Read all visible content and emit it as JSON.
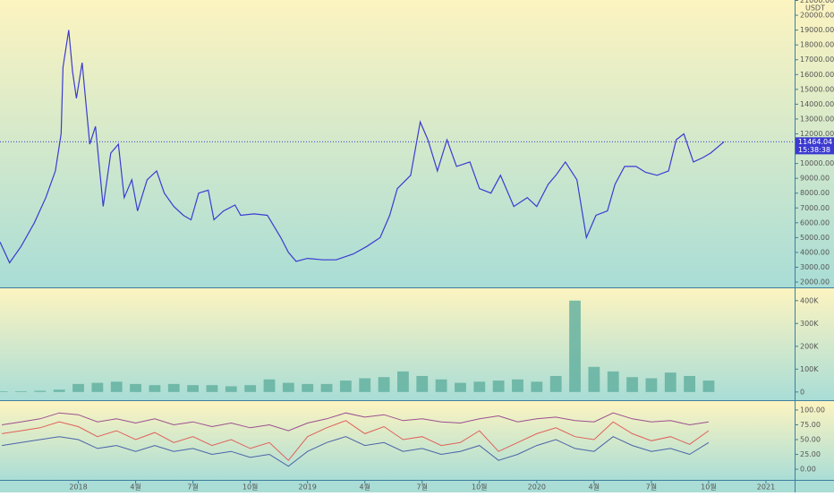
{
  "chart_data": [
    {
      "type": "line",
      "unit": "USDT",
      "last_value_label": "11464.04",
      "countdown": "15:38:38",
      "xlim": [
        -4.1,
        37.5
      ],
      "ylim": [
        1640,
        21030
      ],
      "yticks": [
        {
          "value": 2000,
          "label": "2000.00"
        },
        {
          "value": 3000,
          "label": "3000.00"
        },
        {
          "value": 4000,
          "label": "4000.00"
        },
        {
          "value": 5000,
          "label": "5000.00"
        },
        {
          "value": 6000,
          "label": "6000.00"
        },
        {
          "value": 7000,
          "label": "7000.00"
        },
        {
          "value": 8000,
          "label": "8000.00"
        },
        {
          "value": 9000,
          "label": "9000.00"
        },
        {
          "value": 10000,
          "label": "10000.00"
        },
        {
          "value": 11000,
          "label": "11000.00"
        },
        {
          "value": 12000,
          "label": "12000.00"
        },
        {
          "value": 13000,
          "label": "13000.00"
        },
        {
          "value": 14000,
          "label": "14000.00"
        },
        {
          "value": 15000,
          "label": "15000.00"
        },
        {
          "value": 16000,
          "label": "16000.00"
        },
        {
          "value": 17000,
          "label": "17000.00"
        },
        {
          "value": 18000,
          "label": "18000.00"
        },
        {
          "value": 19000,
          "label": "19000.00"
        },
        {
          "value": 20000,
          "label": "20000.00"
        },
        {
          "value": 21000,
          "label": "21000.00"
        }
      ],
      "x": [
        -4.1,
        -3.6,
        -3.0,
        -2.3,
        -1.7,
        -1.2,
        -0.9,
        -0.8,
        -0.5,
        -0.3,
        -0.1,
        0.2,
        0.6,
        0.9,
        1.3,
        1.7,
        2.1,
        2.4,
        2.8,
        3.1,
        3.6,
        4.1,
        4.5,
        5.0,
        5.5,
        5.9,
        6.3,
        6.8,
        7.1,
        7.6,
        8.2,
        8.5,
        9.2,
        9.9,
        10.6,
        11.0,
        11.4,
        12.0,
        12.8,
        13.5,
        14.4,
        15.1,
        15.8,
        16.3,
        16.7,
        17.4,
        17.9,
        18.3,
        18.8,
        19.3,
        19.8,
        20.5,
        21.0,
        21.6,
        22.1,
        22.8,
        23.5,
        24.0,
        24.6,
        25.0,
        25.5,
        26.1,
        26.6,
        27.1,
        27.7,
        28.1,
        28.6,
        29.2,
        29.7,
        30.3,
        30.9,
        31.3,
        31.7,
        32.2,
        32.7,
        33.1,
        33.8
      ],
      "series": [
        {
          "color": "#3b3bd1",
          "values": [
            4700,
            3300,
            4400,
            6000,
            7700,
            9500,
            12000,
            16500,
            19000,
            16200,
            14400,
            16800,
            11300,
            12500,
            7100,
            10700,
            11300,
            7700,
            8900,
            6800,
            8900,
            9500,
            8000,
            7100,
            6500,
            6200,
            8000,
            8200,
            6200,
            6800,
            7200,
            6500,
            6600,
            6500,
            5000,
            4000,
            3400,
            3600,
            3500,
            3500,
            3900,
            4400,
            5000,
            6500,
            8300,
            9200,
            12800,
            11600,
            9500,
            11600,
            9800,
            10100,
            8300,
            8000,
            9200,
            7100,
            7700,
            7100,
            8600,
            9200,
            10100,
            8900,
            5000,
            6500,
            6800,
            8600,
            9800,
            9800,
            9400,
            9200,
            9500,
            11600,
            12000,
            10100,
            10400,
            10700,
            11464.04
          ]
        }
      ]
    },
    {
      "type": "bar",
      "xlim": [
        -4.1,
        37.5
      ],
      "ylim": [
        -36000,
        454000
      ],
      "yticks": [
        0,
        {
          "value": 100000,
          "label": "100K"
        },
        {
          "value": 200000,
          "label": "200K"
        },
        {
          "value": 300000,
          "label": "300K"
        },
        {
          "value": 400000,
          "label": "400K"
        }
      ],
      "x": [
        -4,
        -3,
        -2,
        -1,
        0,
        1,
        2,
        3,
        4,
        5,
        6,
        7,
        8,
        9,
        10,
        11,
        12,
        13,
        14,
        15,
        16,
        17,
        18,
        19,
        20,
        21,
        22,
        23,
        24,
        25,
        26,
        27,
        28,
        29,
        30,
        31,
        32,
        33
      ],
      "series": [
        {
          "color": "#5fae9e",
          "values": [
            3000,
            3000,
            5000,
            10000,
            35000,
            40000,
            45000,
            35000,
            30000,
            35000,
            30000,
            30000,
            25000,
            30000,
            55000,
            40000,
            35000,
            35000,
            50000,
            60000,
            65000,
            90000,
            70000,
            55000,
            40000,
            45000,
            50000,
            55000,
            45000,
            70000,
            400000,
            110000,
            90000,
            65000,
            60000,
            85000,
            70000,
            50000
          ]
        }
      ]
    },
    {
      "type": "line",
      "xlim": [
        -4.1,
        37.5
      ],
      "ylim": [
        -18,
        115
      ],
      "yticks": [
        {
          "value": 0,
          "label": "0.00"
        },
        {
          "value": 25,
          "label": "25.00"
        },
        {
          "value": 50,
          "label": "50.00"
        },
        {
          "value": 75,
          "label": "75.00"
        },
        {
          "value": 100,
          "label": "100.00"
        }
      ],
      "xticks": [
        {
          "value": 0,
          "label": "2018"
        },
        {
          "value": 3,
          "label": "4월"
        },
        {
          "value": 6,
          "label": "7월"
        },
        {
          "value": 9,
          "label": "10월"
        },
        {
          "value": 12,
          "label": "2019"
        },
        {
          "value": 15,
          "label": "4월"
        },
        {
          "value": 18,
          "label": "7월"
        },
        {
          "value": 21,
          "label": "10월"
        },
        {
          "value": 24,
          "label": "2020"
        },
        {
          "value": 27,
          "label": "4월"
        },
        {
          "value": 30,
          "label": "7월"
        },
        {
          "value": 33,
          "label": "10월"
        },
        {
          "value": 36,
          "label": "2021"
        }
      ],
      "x": [
        -4,
        -3,
        -2,
        -1,
        0,
        1,
        2,
        3,
        4,
        5,
        6,
        7,
        8,
        9,
        10,
        11,
        12,
        13,
        14,
        15,
        16,
        17,
        18,
        19,
        20,
        21,
        22,
        23,
        24,
        25,
        26,
        27,
        28,
        29,
        30,
        31,
        32,
        33
      ],
      "series": [
        {
          "color": "#9c4f8f",
          "values": [
            75,
            80,
            85,
            95,
            92,
            80,
            85,
            78,
            85,
            75,
            80,
            72,
            78,
            70,
            75,
            65,
            78,
            85,
            95,
            88,
            92,
            82,
            85,
            80,
            78,
            85,
            90,
            80,
            85,
            88,
            82,
            80,
            95,
            85,
            80,
            82,
            75,
            80
          ]
        },
        {
          "color": "#e0605a",
          "values": [
            60,
            65,
            70,
            80,
            72,
            55,
            65,
            50,
            62,
            45,
            55,
            40,
            50,
            35,
            45,
            15,
            55,
            70,
            82,
            60,
            72,
            50,
            55,
            40,
            45,
            65,
            30,
            45,
            60,
            70,
            55,
            50,
            80,
            60,
            48,
            55,
            42,
            65
          ]
        },
        {
          "color": "#4a63a8",
          "values": [
            40,
            45,
            50,
            55,
            50,
            35,
            40,
            30,
            40,
            30,
            35,
            25,
            30,
            20,
            25,
            5,
            30,
            45,
            55,
            40,
            45,
            30,
            35,
            25,
            30,
            40,
            15,
            25,
            40,
            50,
            35,
            30,
            55,
            40,
            30,
            35,
            25,
            45
          ]
        }
      ]
    }
  ]
}
